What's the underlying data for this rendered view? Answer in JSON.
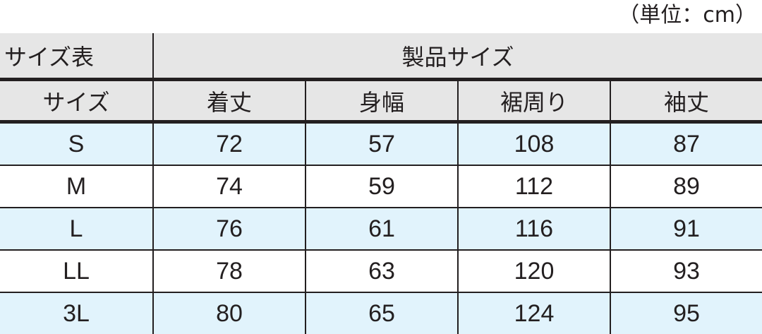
{
  "unit_note": "（単位：cm）",
  "table": {
    "corner_label": "サイズ表",
    "group_header": "製品サイズ",
    "columns": [
      "サイズ",
      "着丈",
      "身幅",
      "裾周り",
      "袖丈"
    ],
    "rows": [
      [
        "S",
        "72",
        "57",
        "108",
        "87"
      ],
      [
        "M",
        "74",
        "59",
        "112",
        "89"
      ],
      [
        "L",
        "76",
        "61",
        "116",
        "91"
      ],
      [
        "LL",
        "78",
        "63",
        "120",
        "93"
      ],
      [
        "3L",
        "80",
        "65",
        "124",
        "95"
      ]
    ]
  },
  "colors": {
    "header_bg": "#e6e6e6",
    "row_alt_bg": "#e1f3fc",
    "line": "#231f20"
  }
}
